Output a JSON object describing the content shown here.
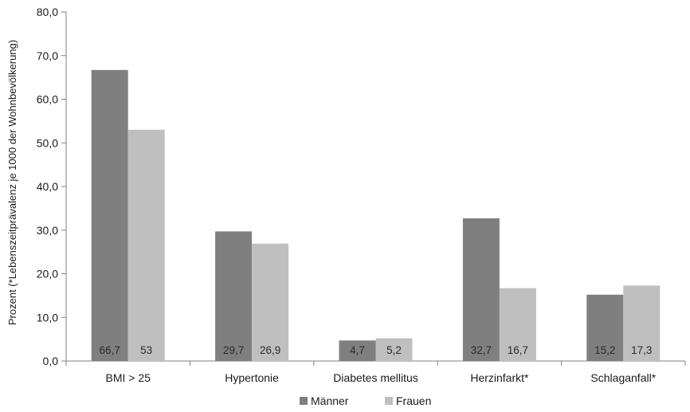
{
  "chart_data": {
    "type": "bar",
    "title": "",
    "xlabel": "",
    "ylabel": "Prozent (*Lebenszeitprävalenz je 1000 der Wohnbevölkerung)",
    "ylim": [
      0,
      80
    ],
    "ytick_step": 10,
    "ytick_labels": [
      "0,0",
      "10,0",
      "20,0",
      "30,0",
      "40,0",
      "50,0",
      "60,0",
      "70,0",
      "80,0"
    ],
    "grid": false,
    "legend_position": "bottom",
    "categories": [
      "BMI > 25",
      "Hypertonie",
      "Diabetes mellitus",
      "Herzinfarkt*",
      "Schlaganfall*"
    ],
    "series": [
      {
        "name": "Männer",
        "color": "#7f7f7f",
        "values": [
          66.7,
          29.7,
          4.7,
          32.7,
          15.2
        ],
        "labels": [
          "66,7",
          "29,7",
          "4,7",
          "32,7",
          "15,2"
        ]
      },
      {
        "name": "Frauen",
        "color": "#bfbfbf",
        "values": [
          53,
          26.9,
          5.2,
          16.7,
          17.3
        ],
        "labels": [
          "53",
          "26,9",
          "5,2",
          "16,7",
          "17,3"
        ]
      }
    ]
  }
}
